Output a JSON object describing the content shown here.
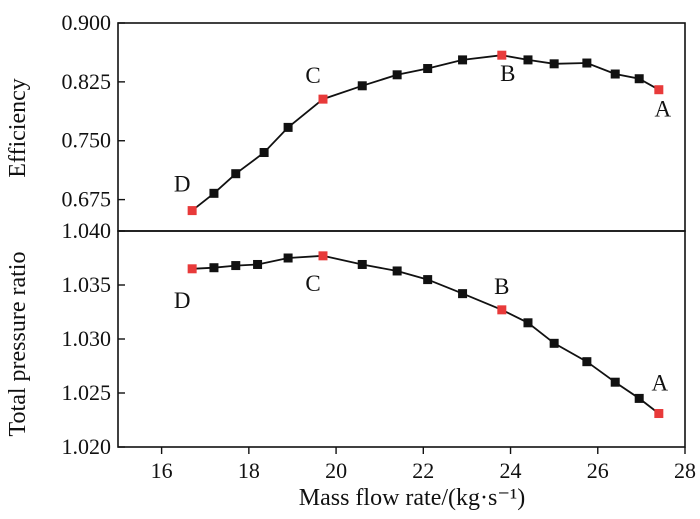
{
  "chart_data": [
    {
      "type": "line",
      "panel": "top",
      "ylabel": "Efficiency",
      "xlabel": "",
      "xlim": [
        15,
        28
      ],
      "ylim": [
        0.635,
        0.9
      ],
      "yticks": [
        0.675,
        0.75,
        0.825,
        0.9
      ],
      "ytick_labels": [
        "0.675",
        "0.750",
        "0.825",
        "0.900"
      ],
      "series": [
        {
          "name": "Efficiency",
          "x": [
            16.7,
            17.2,
            17.7,
            18.35,
            18.9,
            19.7,
            20.6,
            21.4,
            22.1,
            22.9,
            23.8,
            24.4,
            25.0,
            25.75,
            26.4,
            26.95,
            27.4
          ],
          "y": [
            0.661,
            0.683,
            0.708,
            0.735,
            0.767,
            0.803,
            0.82,
            0.834,
            0.842,
            0.853,
            0.859,
            0.853,
            0.848,
            0.849,
            0.835,
            0.829,
            0.815
          ]
        }
      ],
      "highlighted": [
        {
          "label": "D",
          "x": 16.7,
          "y": 0.661
        },
        {
          "label": "C",
          "x": 19.7,
          "y": 0.803
        },
        {
          "label": "B",
          "x": 23.8,
          "y": 0.859
        },
        {
          "label": "A",
          "x": 27.4,
          "y": 0.815
        }
      ]
    },
    {
      "type": "line",
      "panel": "bottom",
      "ylabel": "Total pressure ratio",
      "xlabel": "Mass flow rate/(kg·s⁻¹)",
      "xlim": [
        15,
        28
      ],
      "ylim": [
        1.02,
        1.04
      ],
      "xticks": [
        16,
        18,
        20,
        22,
        24,
        26,
        28
      ],
      "xtick_labels": [
        "16",
        "18",
        "20",
        "22",
        "24",
        "26",
        "28"
      ],
      "yticks": [
        1.02,
        1.025,
        1.03,
        1.035,
        1.04
      ],
      "ytick_labels": [
        "1.020",
        "1.025",
        "1.030",
        "1.035",
        "1.040"
      ],
      "series": [
        {
          "name": "Total pressure ratio",
          "x": [
            16.7,
            17.2,
            17.7,
            18.2,
            18.9,
            19.7,
            20.6,
            21.4,
            22.1,
            22.9,
            23.8,
            24.4,
            25.0,
            25.75,
            26.4,
            26.95,
            27.4
          ],
          "y": [
            1.0365,
            1.0366,
            1.0368,
            1.0369,
            1.0375,
            1.0377,
            1.0369,
            1.0363,
            1.0355,
            1.0342,
            1.0327,
            1.0315,
            1.0296,
            1.0279,
            1.026,
            1.0245,
            1.0231
          ]
        }
      ],
      "highlighted": [
        {
          "label": "D",
          "x": 16.7,
          "y": 1.0365
        },
        {
          "label": "C",
          "x": 19.7,
          "y": 1.0377
        },
        {
          "label": "B",
          "x": 23.8,
          "y": 1.0327
        },
        {
          "label": "A",
          "x": 27.4,
          "y": 1.0231
        }
      ]
    }
  ],
  "colors": {
    "normal_marker": "#111111",
    "highlight_marker": "#e83a3a",
    "line": "#111111",
    "axis": "#111111"
  }
}
